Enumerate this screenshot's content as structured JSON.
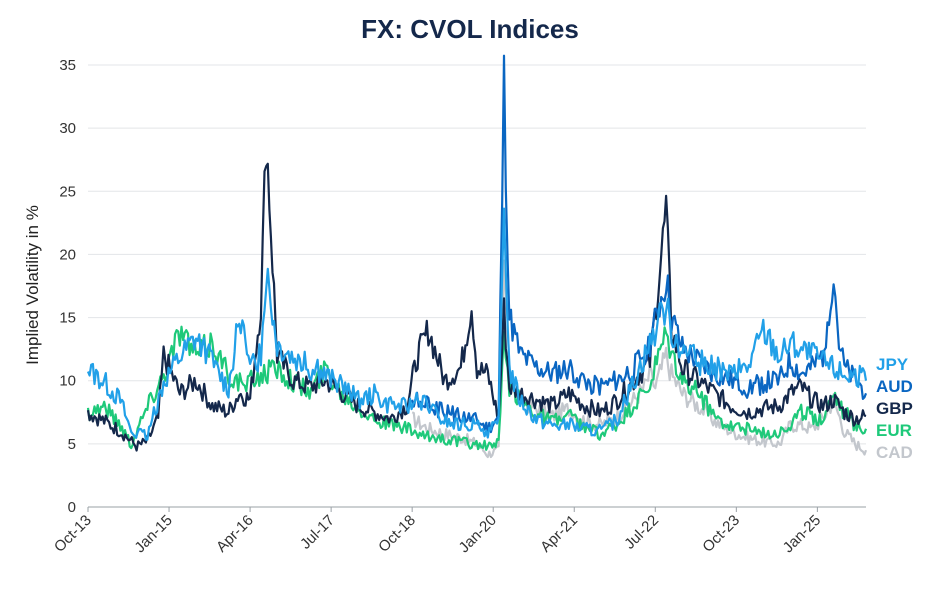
{
  "chart_data": {
    "type": "line",
    "title": "FX: CVOL Indices",
    "xlabel": "",
    "ylabel": "Implied Volatility in %",
    "ylim": [
      0,
      35
    ],
    "yticks": [
      0,
      5,
      10,
      15,
      20,
      25,
      30,
      35
    ],
    "xlim": [
      "2013-10",
      "2025-10"
    ],
    "xticks": [
      "Oct-13",
      "Jan-15",
      "Apr-16",
      "Jul-17",
      "Oct-18",
      "Jan-20",
      "Apr-21",
      "Jul-22",
      "Oct-23",
      "Jan-25"
    ],
    "grid": true,
    "legend_position": "right (labels at line ends)",
    "series": [
      {
        "name": "CAD",
        "color": "#c3c7cd",
        "x": [
          "2018-10",
          "2019-01",
          "2019-04",
          "2019-07",
          "2019-10",
          "2019-12",
          "2020-02",
          "2020-03",
          "2020-04",
          "2020-06",
          "2020-09",
          "2020-12",
          "2021-03",
          "2021-06",
          "2021-09",
          "2021-12",
          "2022-03",
          "2022-05",
          "2022-06",
          "2022-07",
          "2022-09",
          "2022-10",
          "2022-12",
          "2023-03",
          "2023-06",
          "2023-09",
          "2023-12",
          "2024-03",
          "2024-06",
          "2024-08",
          "2024-10",
          "2024-12",
          "2025-02",
          "2025-04",
          "2025-06",
          "2025-08",
          "2025-10"
        ],
        "values": [
          7,
          6.2,
          5.8,
          5.5,
          5,
          4.2,
          4.5,
          19.2,
          11,
          8.5,
          7.8,
          7.2,
          7.8,
          6.8,
          6.5,
          7.2,
          8.5,
          9.5,
          10.5,
          9.5,
          12,
          10.5,
          9,
          8,
          6.8,
          6,
          5.5,
          5.2,
          5,
          6.5,
          6.5,
          6.2,
          7,
          8.5,
          6,
          5,
          4.5
        ]
      },
      {
        "name": "EUR",
        "color": "#1ec97a",
        "x": [
          "2013-10",
          "2014-01",
          "2014-04",
          "2014-06",
          "2014-09",
          "2014-12",
          "2015-03",
          "2015-06",
          "2015-09",
          "2015-12",
          "2016-03",
          "2016-06",
          "2016-09",
          "2016-12",
          "2017-03",
          "2017-06",
          "2017-09",
          "2017-12",
          "2018-03",
          "2018-06",
          "2018-09",
          "2018-12",
          "2019-03",
          "2019-06",
          "2019-09",
          "2019-12",
          "2020-02",
          "2020-03",
          "2020-04",
          "2020-06",
          "2020-09",
          "2020-12",
          "2021-03",
          "2021-06",
          "2021-09",
          "2021-12",
          "2022-03",
          "2022-06",
          "2022-07",
          "2022-09",
          "2022-10",
          "2022-12",
          "2023-03",
          "2023-06",
          "2023-09",
          "2023-12",
          "2024-03",
          "2024-06",
          "2024-08",
          "2024-10",
          "2024-12",
          "2025-02",
          "2025-04",
          "2025-06",
          "2025-08",
          "2025-10"
        ],
        "values": [
          7.5,
          8,
          6.5,
          5,
          8,
          10.5,
          14,
          12,
          13,
          10.5,
          9.5,
          10.5,
          11,
          10,
          9,
          11,
          9,
          8,
          7,
          6.5,
          6.2,
          5.5,
          5.5,
          5.2,
          5,
          4.8,
          5,
          13,
          9.5,
          8.5,
          7.5,
          6.8,
          7.2,
          6.2,
          5.8,
          6.5,
          8,
          9.5,
          11,
          13.5,
          12,
          10,
          9,
          7.2,
          6.5,
          6.2,
          5.8,
          6,
          6.5,
          7.5,
          7.2,
          7,
          9.2,
          7.5,
          6.5,
          6.2
        ]
      },
      {
        "name": "GBP",
        "color": "#14284b",
        "x": [
          "2013-10",
          "2014-01",
          "2014-04",
          "2014-07",
          "2014-09",
          "2014-11",
          "2014-12",
          "2015-03",
          "2015-06",
          "2015-09",
          "2015-12",
          "2016-02",
          "2016-04",
          "2016-06",
          "2016-07",
          "2016-09",
          "2016-12",
          "2017-03",
          "2017-06",
          "2017-09",
          "2017-12",
          "2018-03",
          "2018-06",
          "2018-09",
          "2018-11",
          "2019-01",
          "2019-04",
          "2019-07",
          "2019-09",
          "2019-10",
          "2019-12",
          "2020-02",
          "2020-03",
          "2020-04",
          "2020-06",
          "2020-09",
          "2020-12",
          "2021-03",
          "2021-06",
          "2021-09",
          "2021-12",
          "2022-03",
          "2022-06",
          "2022-09",
          "2022-10",
          "2022-12",
          "2023-03",
          "2023-06",
          "2023-09",
          "2023-12",
          "2024-03",
          "2024-06",
          "2024-08",
          "2024-10",
          "2024-12",
          "2025-02",
          "2025-04",
          "2025-06",
          "2025-08",
          "2025-10"
        ],
        "values": [
          7.5,
          6.8,
          6,
          4.8,
          5.2,
          7,
          12,
          9,
          10,
          8,
          7.5,
          9,
          8.5,
          16,
          29.5,
          12,
          10,
          9.5,
          10,
          9,
          8,
          7.5,
          7,
          8,
          12,
          14,
          10,
          11,
          16,
          11,
          10.5,
          7,
          15.5,
          9.5,
          9,
          8.5,
          8,
          9,
          8,
          7.5,
          8.5,
          10,
          11.5,
          23.5,
          14,
          11,
          10,
          9,
          8,
          7.5,
          7.8,
          8,
          9,
          9.5,
          8.5,
          8,
          8.5,
          7.5,
          7,
          7.2
        ]
      },
      {
        "name": "AUD",
        "color": "#0a66c2",
        "x": [
          "2018-10",
          "2019-01",
          "2019-04",
          "2019-07",
          "2019-10",
          "2019-12",
          "2020-02",
          "2020-03",
          "2020-04",
          "2020-06",
          "2020-09",
          "2020-12",
          "2021-03",
          "2021-06",
          "2021-09",
          "2021-12",
          "2022-03",
          "2022-06",
          "2022-09",
          "2022-10",
          "2022-12",
          "2023-03",
          "2023-06",
          "2023-09",
          "2023-12",
          "2024-03",
          "2024-06",
          "2024-08",
          "2024-10",
          "2024-12",
          "2025-02",
          "2025-04",
          "2025-05",
          "2025-06",
          "2025-08",
          "2025-10"
        ],
        "values": [
          8.5,
          8,
          7.5,
          7.2,
          6.8,
          6.2,
          7,
          33.5,
          15,
          12,
          11,
          10.5,
          11,
          10,
          9.5,
          10,
          11,
          13,
          18,
          15,
          12.5,
          11.5,
          10.5,
          10,
          9.5,
          9.8,
          10,
          11.5,
          10.5,
          11,
          12,
          18.5,
          13,
          11,
          10,
          9
        ]
      },
      {
        "name": "JPY",
        "color": "#21a0e8",
        "x": [
          "2013-10",
          "2014-01",
          "2014-04",
          "2014-06",
          "2014-09",
          "2014-12",
          "2015-03",
          "2015-06",
          "2015-09",
          "2015-12",
          "2016-02",
          "2016-04",
          "2016-06",
          "2016-07",
          "2016-09",
          "2016-12",
          "2017-03",
          "2017-06",
          "2017-09",
          "2017-12",
          "2018-03",
          "2018-06",
          "2018-09",
          "2018-12",
          "2019-03",
          "2019-06",
          "2019-09",
          "2019-12",
          "2020-02",
          "2020-03",
          "2020-04",
          "2020-06",
          "2020-09",
          "2020-12",
          "2021-03",
          "2021-06",
          "2021-09",
          "2021-12",
          "2022-03",
          "2022-06",
          "2022-09",
          "2022-10",
          "2022-12",
          "2023-03",
          "2023-06",
          "2023-09",
          "2023-12",
          "2024-03",
          "2024-06",
          "2024-08",
          "2024-10",
          "2024-12",
          "2025-02",
          "2025-04",
          "2025-06",
          "2025-08",
          "2025-10"
        ],
        "values": [
          11,
          10,
          8.5,
          6,
          5.5,
          10,
          12,
          13.5,
          11.5,
          9.5,
          15,
          11,
          12,
          19,
          13,
          12,
          11,
          10.5,
          9.5,
          8.5,
          9,
          8,
          8,
          8.5,
          7,
          6.5,
          6.5,
          6,
          6.5,
          24,
          11,
          8.5,
          7,
          6.5,
          6.5,
          6.2,
          6,
          7,
          10,
          13,
          16,
          14,
          12.5,
          11.5,
          11,
          10.5,
          11,
          14,
          12,
          13,
          12.5,
          12,
          11.5,
          11,
          10.5,
          10.5,
          10
        ]
      }
    ]
  }
}
